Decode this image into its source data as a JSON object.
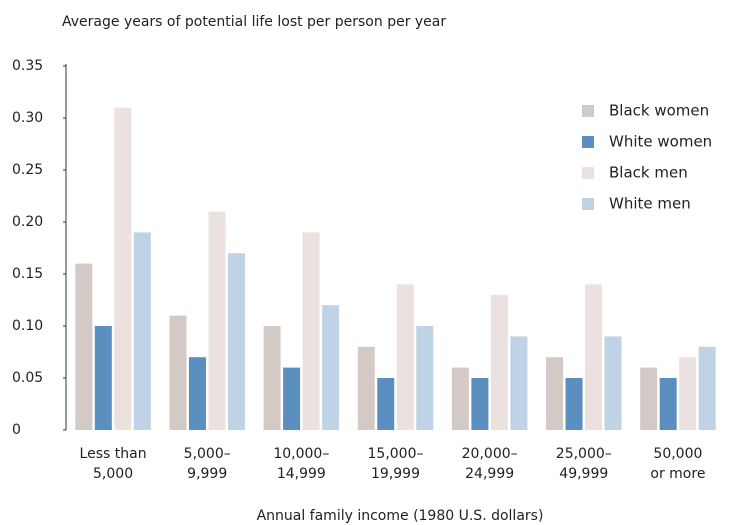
{
  "chart_data": {
    "type": "bar",
    "title": "Average years of potential life lost per person per year",
    "x_label": "Annual family income (1980 U.S. dollars)",
    "categories": [
      "Less than\n5,000",
      "5,000–\n9,999",
      "10,000–\n14,999",
      "15,000–\n19,999",
      "20,000–\n24,999",
      "25,000–\n49,999",
      "50,000\nor more"
    ],
    "series": [
      {
        "name": "Black women",
        "color": "#d3cac6",
        "values": [
          0.16,
          0.11,
          0.1,
          0.08,
          0.06,
          0.07,
          0.06
        ]
      },
      {
        "name": "White women",
        "color": "#5b8fbf",
        "values": [
          0.1,
          0.07,
          0.06,
          0.05,
          0.05,
          0.05,
          0.05
        ]
      },
      {
        "name": "Black men",
        "color": "#ebe2e0",
        "values": [
          0.31,
          0.21,
          0.19,
          0.14,
          0.13,
          0.14,
          0.07
        ]
      },
      {
        "name": "White men",
        "color": "#c0d3e6",
        "values": [
          0.19,
          0.17,
          0.12,
          0.1,
          0.09,
          0.09,
          0.08
        ]
      }
    ],
    "ylim": [
      0,
      0.35
    ],
    "yticks": [
      0,
      0.05,
      {
        "value": 0.1,
        "label": "0.10"
      },
      0.15,
      {
        "value": 0.2,
        "label": "0.20"
      },
      0.25,
      {
        "value": 0.3,
        "label": "0.30"
      },
      0.35
    ],
    "legend": "upper-right"
  }
}
